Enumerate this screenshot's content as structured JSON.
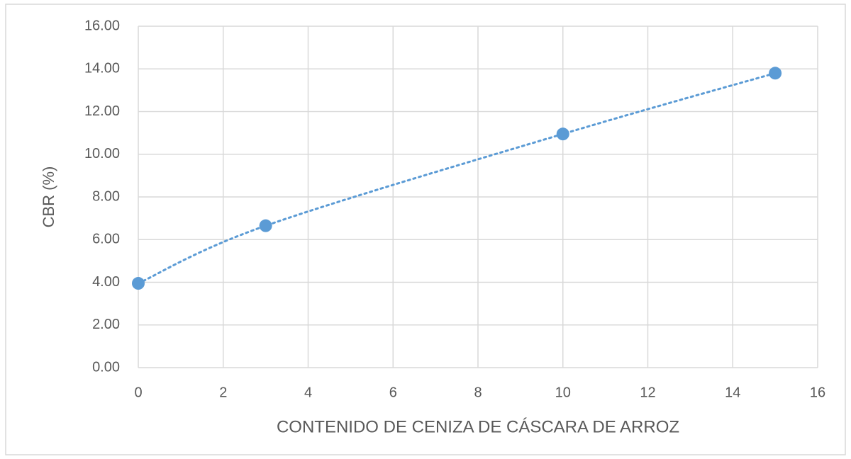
{
  "chart_data": {
    "type": "scatter",
    "x_label": "CONTENIDO DE CENIZA DE CÁSCARA DE ARROZ",
    "y_label": "CBR (%)",
    "x": [
      0,
      3,
      10,
      15
    ],
    "series": [
      {
        "name": "CBR",
        "color": "#5b9bd5",
        "values": [
          3.95,
          6.65,
          10.95,
          13.8
        ]
      }
    ],
    "line_style": "dotted",
    "xlim": [
      0,
      16
    ],
    "xticks": [
      0,
      2,
      4,
      6,
      8,
      10,
      12,
      14,
      16
    ],
    "ylim": [
      0,
      16
    ],
    "yticks": [
      {
        "value": 0,
        "label": "0.00"
      },
      {
        "value": 2,
        "label": "2.00"
      },
      {
        "value": 4,
        "label": "4.00"
      },
      {
        "value": 6,
        "label": "6.00"
      },
      {
        "value": 8,
        "label": "8.00"
      },
      {
        "value": 10,
        "label": "10.00"
      },
      {
        "value": 12,
        "label": "12.00"
      },
      {
        "value": 14,
        "label": "14.00"
      },
      {
        "value": 16,
        "label": "16.00"
      }
    ],
    "grid": true
  }
}
